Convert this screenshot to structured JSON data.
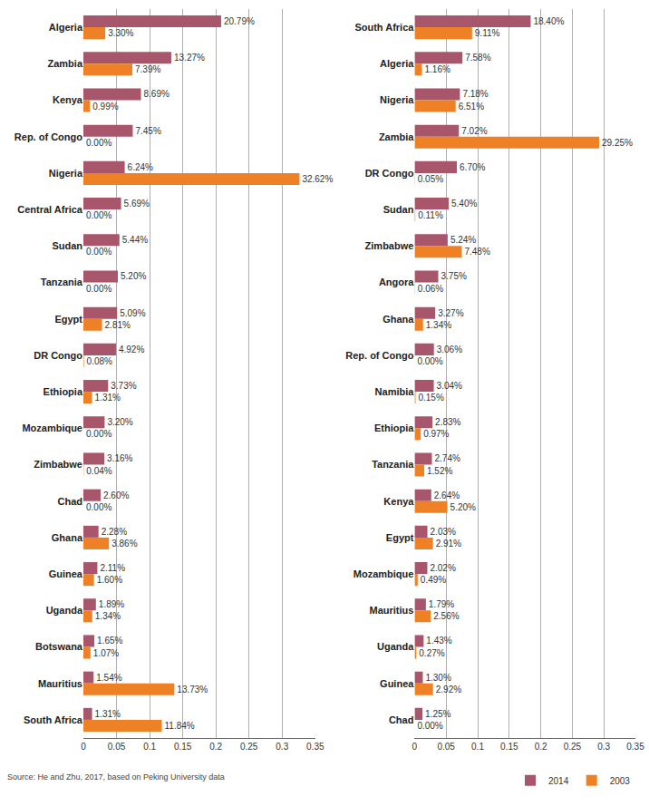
{
  "chart_data": [
    {
      "type": "bar",
      "orientation": "horizontal",
      "grid": true,
      "data_labels": true,
      "categories": [
        "Algeria",
        "Zambia",
        "Kenya",
        "Rep. of Congo",
        "Nigeria",
        "Central Africa",
        "Sudan",
        "Tanzania",
        "Egypt",
        "DR Congo",
        "Ethiopia",
        "Mozambique",
        "Zimbabwe",
        "Chad",
        "Ghana",
        "Guinea",
        "Uganda",
        "Botswana",
        "Mauritius",
        "South Africa"
      ],
      "series": [
        {
          "name": "2014",
          "color": "#a8566b",
          "values": [
            0.2079,
            0.1327,
            0.0869,
            0.0745,
            0.0624,
            0.0569,
            0.0544,
            0.052,
            0.0509,
            0.0492,
            0.0373,
            0.032,
            0.0316,
            0.026,
            0.0228,
            0.0211,
            0.0189,
            0.0165,
            0.0154,
            0.0131
          ],
          "value_labels": [
            "20.79%",
            "13.27%",
            "8.69%",
            "7.45%",
            "6.24%",
            "5.69%",
            "5.44%",
            "5.20%",
            "5.09%",
            "4.92%",
            "3.73%",
            "3.20%",
            "3.16%",
            "2.60%",
            "2.28%",
            "2.11%",
            "1.89%",
            "1.65%",
            "1.54%",
            "1.31%"
          ]
        },
        {
          "name": "2003",
          "color": "#ee8125",
          "values": [
            0.033,
            0.0739,
            0.0099,
            0,
            0.3262,
            0,
            0,
            0,
            0.0281,
            0.0008,
            0.0131,
            0,
            0.0004,
            0,
            0.0386,
            0.016,
            0.0134,
            0.0107,
            0.1373,
            0.1184
          ],
          "value_labels": [
            "3.30%",
            "7.39%",
            "0.99%",
            "0.00%",
            "32.62%",
            "0.00%",
            "0.00%",
            "0.00%",
            "2.81%",
            "0.08%",
            "1.31%",
            "0.00%",
            "0.04%",
            "0.00%",
            "3.86%",
            "1.60%",
            "1.34%",
            "1.07%",
            "13.73%",
            "11.84%"
          ]
        }
      ],
      "xlim": [
        0,
        0.35
      ],
      "xticks": [
        0,
        0.05,
        0.1,
        0.15,
        0.2,
        0.25,
        0.3,
        0.35
      ],
      "annotations": [
        "Source: He and Zhu, 2017, based on Peking University data"
      ]
    },
    {
      "type": "bar",
      "orientation": "horizontal",
      "grid": true,
      "data_labels": true,
      "legend": "bottom right",
      "categories": [
        "South Africa",
        "Algeria",
        "Nigeria",
        "Zambia",
        "DR Congo",
        "Sudan",
        "Zimbabwe",
        "Angora",
        "Ghana",
        "Rep. of Congo",
        "Namibia",
        "Ethiopia",
        "Tanzania",
        "Kenya",
        "Egypt",
        "Mozambique",
        "Mauritius",
        "Uganda",
        "Guinea",
        "Chad"
      ],
      "series": [
        {
          "name": "2014",
          "color": "#a8566b",
          "values": [
            0.184,
            0.0758,
            0.0718,
            0.0702,
            0.067,
            0.054,
            0.0524,
            0.0375,
            0.0327,
            0.0306,
            0.0304,
            0.0283,
            0.0274,
            0.0264,
            0.0203,
            0.0202,
            0.0179,
            0.0143,
            0.013,
            0.0125
          ],
          "value_labels": [
            "18.40%",
            "7.58%",
            "7.18%",
            "7.02%",
            "6.70%",
            "5.40%",
            "5.24%",
            "3.75%",
            "3.27%",
            "3.06%",
            "3.04%",
            "2.83%",
            "2.74%",
            "2.64%",
            "2.03%",
            "2.02%",
            "1.79%",
            "1.43%",
            "1.30%",
            "1.25%"
          ]
        },
        {
          "name": "2003",
          "color": "#ee8125",
          "values": [
            0.0911,
            0.0116,
            0.0651,
            0.2925,
            0.0005,
            0.0011,
            0.0748,
            0.0006,
            0.0134,
            0,
            0.0015,
            0.0097,
            0.0152,
            0.052,
            0.0291,
            0.0049,
            0.0256,
            0.0027,
            0.0292,
            0
          ],
          "value_labels": [
            "9.11%",
            "1.16%",
            "6.51%",
            "29.25%",
            "0.05%",
            "0.11%",
            "7.48%",
            "0.06%",
            "1.34%",
            "0.00%",
            "0.15%",
            "0.97%",
            "1.52%",
            "5.20%",
            "2.91%",
            "0.49%",
            "2.56%",
            "0.27%",
            "2.92%",
            "0.00%"
          ]
        }
      ],
      "xlim": [
        0,
        0.35
      ],
      "xticks": [
        0,
        0.05,
        0.1,
        0.15,
        0.2,
        0.25,
        0.3,
        0.35
      ]
    }
  ]
}
